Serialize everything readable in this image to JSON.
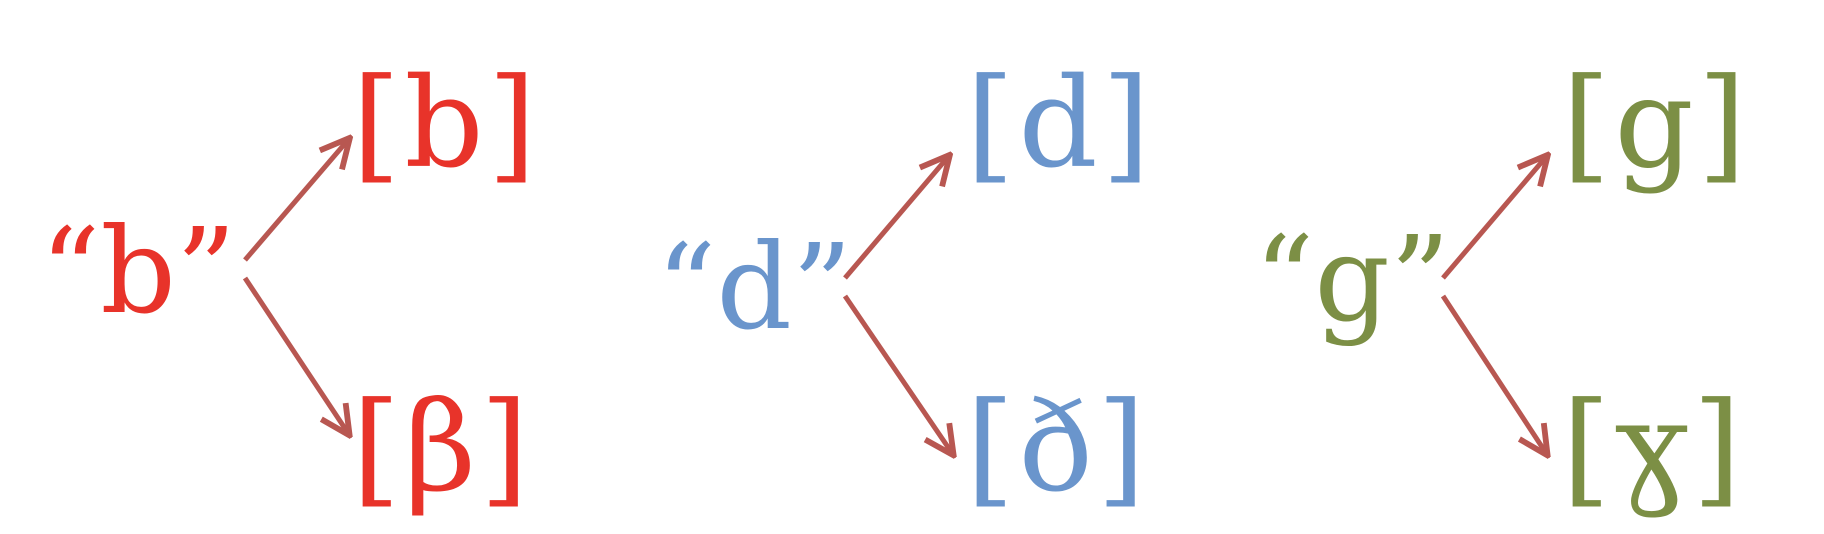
{
  "groups": [
    {
      "color": "#E8332A",
      "source": "“b”",
      "outputs": [
        "[b]",
        "[β]"
      ]
    },
    {
      "color": "#6A95CC",
      "source": "“d”",
      "outputs": [
        "[d]",
        "[ð]"
      ]
    },
    {
      "color": "#7C8F45",
      "source": "“g”",
      "outputs": [
        "[g]",
        "[ɣ]"
      ]
    }
  ],
  "arrow_color": "#B85751"
}
